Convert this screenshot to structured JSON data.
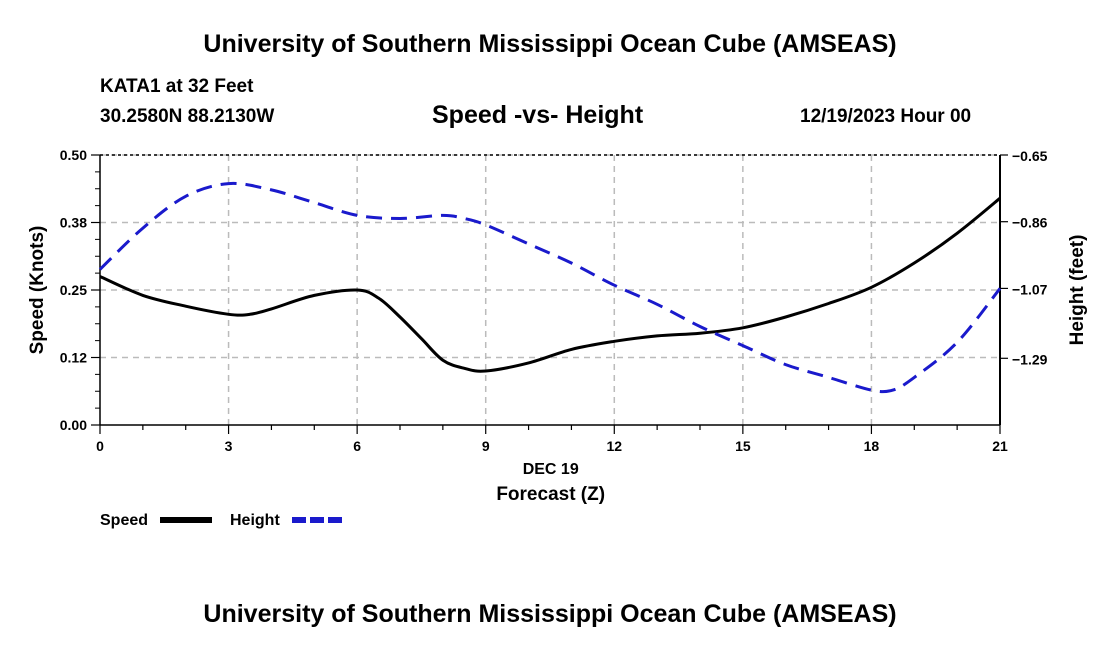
{
  "header": {
    "title_top": "University of Southern Mississippi Ocean Cube (AMSEAS)",
    "station": "KATA1 at 32 Feet",
    "coords": "30.2580N  88.2130W",
    "chart_title": "Speed -vs- Height",
    "datetime": "12/19/2023 Hour 00",
    "title_bottom": "University of Southern Mississippi Ocean Cube (AMSEAS)"
  },
  "colors": {
    "speed": "#000000",
    "height": "#1a1acc",
    "grid": "#bbbbbb"
  },
  "chart_data": {
    "type": "line",
    "title": "Speed -vs- Height",
    "xlabel": "Forecast (Z)",
    "xsublabel": "DEC 19",
    "ylabel": "Speed (Knots)",
    "y2label": "Height (feet)",
    "xlim": [
      0,
      21
    ],
    "ylim": [
      0,
      0.5
    ],
    "y2lim": [
      -1.5,
      -0.65
    ],
    "x_ticks": [
      0,
      3,
      6,
      9,
      12,
      15,
      18,
      21
    ],
    "x_tick_labels": [
      "0",
      "3",
      "6",
      "9",
      "12",
      "15",
      "18",
      "21"
    ],
    "y_ticks": [
      0,
      0.125,
      0.25,
      0.375,
      0.5
    ],
    "y_tick_labels": [
      "0.00",
      "0.12",
      "0.25",
      "0.38",
      "0.50"
    ],
    "y2_ticks": [
      -0.65,
      -0.86,
      -1.07,
      -1.29
    ],
    "y2_tick_labels": [
      "-0.65",
      "-0.86",
      "-1.07",
      "-1.29"
    ],
    "series": [
      {
        "name": "Speed",
        "axis": "left",
        "style": "solid",
        "x": [
          0,
          1,
          2,
          3,
          3.5,
          4,
          5,
          6,
          6.5,
          7,
          7.5,
          8,
          8.5,
          9,
          10,
          11,
          12,
          13,
          14,
          15,
          16,
          17,
          18,
          19,
          20,
          21
        ],
        "values": [
          0.275,
          0.24,
          0.22,
          0.205,
          0.205,
          0.215,
          0.24,
          0.25,
          0.235,
          0.2,
          0.16,
          0.12,
          0.105,
          0.1,
          0.115,
          0.14,
          0.155,
          0.165,
          0.17,
          0.18,
          0.2,
          0.225,
          0.255,
          0.3,
          0.355,
          0.42
        ]
      },
      {
        "name": "Height",
        "axis": "right",
        "style": "dashed",
        "x": [
          0,
          1,
          2,
          3,
          4,
          5,
          6,
          7,
          8,
          8.5,
          9,
          10,
          11,
          12,
          13,
          14,
          15,
          16,
          17,
          18,
          18.5,
          19,
          20,
          21
        ],
        "values": [
          -1.01,
          -0.88,
          -0.78,
          -0.74,
          -0.76,
          -0.8,
          -0.84,
          -0.85,
          -0.84,
          -0.85,
          -0.87,
          -0.93,
          -0.99,
          -1.06,
          -1.12,
          -1.19,
          -1.25,
          -1.31,
          -1.35,
          -1.39,
          -1.39,
          -1.35,
          -1.24,
          -1.07
        ]
      }
    ],
    "legend": [
      {
        "label": "Speed",
        "series": "Speed"
      },
      {
        "label": "Height",
        "series": "Height"
      }
    ]
  }
}
